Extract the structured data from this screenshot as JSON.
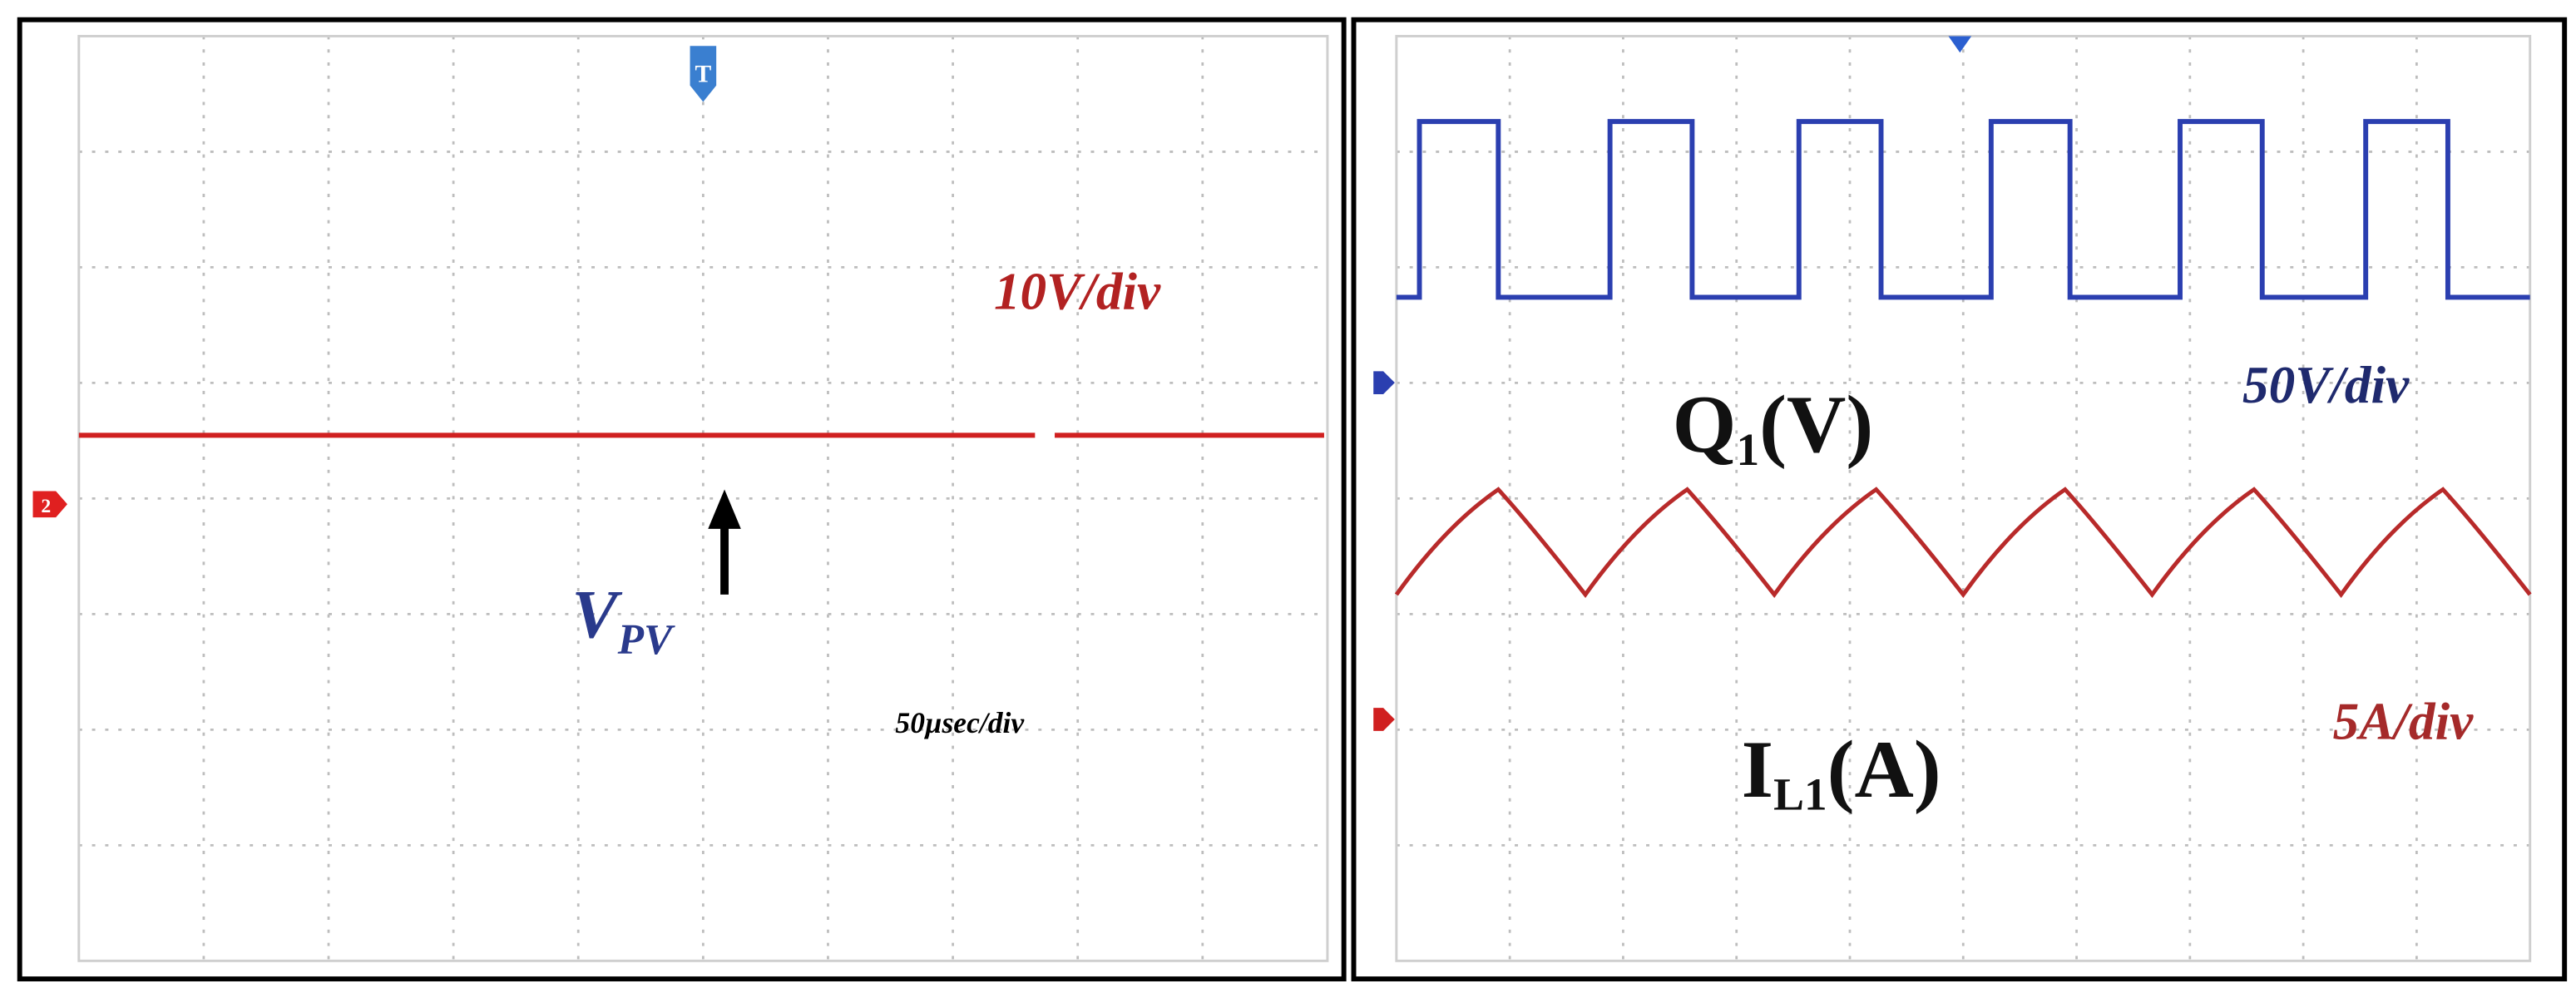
{
  "left_panel": {
    "trigger_marker": "T",
    "channel_marker": "2",
    "scale_label": "10V/div",
    "signal_label": {
      "main": "V",
      "sub": "PV"
    },
    "time_label": "50µsec/div"
  },
  "right_panel": {
    "top_signal_label": {
      "main": "Q",
      "sub": "1",
      "rest": "(V)"
    },
    "top_scale_label": "50V/div",
    "bottom_signal_label": {
      "main": "I",
      "sub": "L1",
      "rest": "(A)"
    },
    "bottom_scale_label": "5A/div"
  }
}
